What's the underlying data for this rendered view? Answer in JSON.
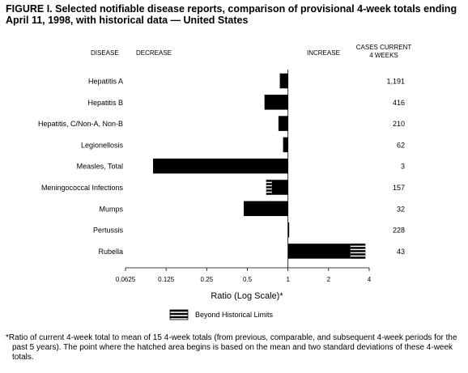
{
  "title": "FIGURE I. Selected notifiable disease reports, comparison of provisional 4-week totals ending April 11, 1998, with historical data — United States",
  "headers": {
    "disease": "DISEASE",
    "decrease": "DECREASE",
    "increase": "INCREASE",
    "cases_line1": "CASES CURRENT",
    "cases_line2": "4 WEEKS"
  },
  "legend_label": "Beyond Historical Limits",
  "footnote_marker": "*",
  "footnote": "Ratio of current 4-week total to mean of 15 4-week totals (from previous, comparable, and subsequent 4-week periods for the past 5 years). The point where the hatched area begins is based on the mean and two standard deviations of these 4-week totals.",
  "colors": {
    "bar": "#000000",
    "hatch": "#ffffff",
    "background": "#ffffff"
  },
  "chart_data": {
    "type": "bar",
    "orientation": "horizontal",
    "xscale": "log2",
    "xlabel": "Ratio (Log Scale)*",
    "xlim": [
      0.0625,
      4
    ],
    "reference": 1,
    "xticks": [
      0.0625,
      0.125,
      0.25,
      0.5,
      1,
      2,
      4
    ],
    "xtick_labels": [
      "0.0625",
      "0.125",
      "0.25",
      "0.5",
      "1",
      "2",
      "4"
    ],
    "categories": [
      "Hepatitis A",
      "Hepatitis B",
      "Hepatitis, C/Non-A, Non-B",
      "Legionellosis",
      "Measles, Total",
      "Meningococcal Infections",
      "Mumps",
      "Pertussis",
      "Rubella"
    ],
    "values": [
      0.87,
      0.67,
      0.85,
      0.92,
      0.1,
      0.69,
      0.47,
      1.01,
      3.75
    ],
    "hatch_from": [
      null,
      null,
      null,
      null,
      null,
      0.76,
      null,
      null,
      2.9
    ],
    "cases": [
      "1,191",
      "416",
      "210",
      "62",
      "3",
      "157",
      "32",
      "228",
      "43"
    ]
  }
}
